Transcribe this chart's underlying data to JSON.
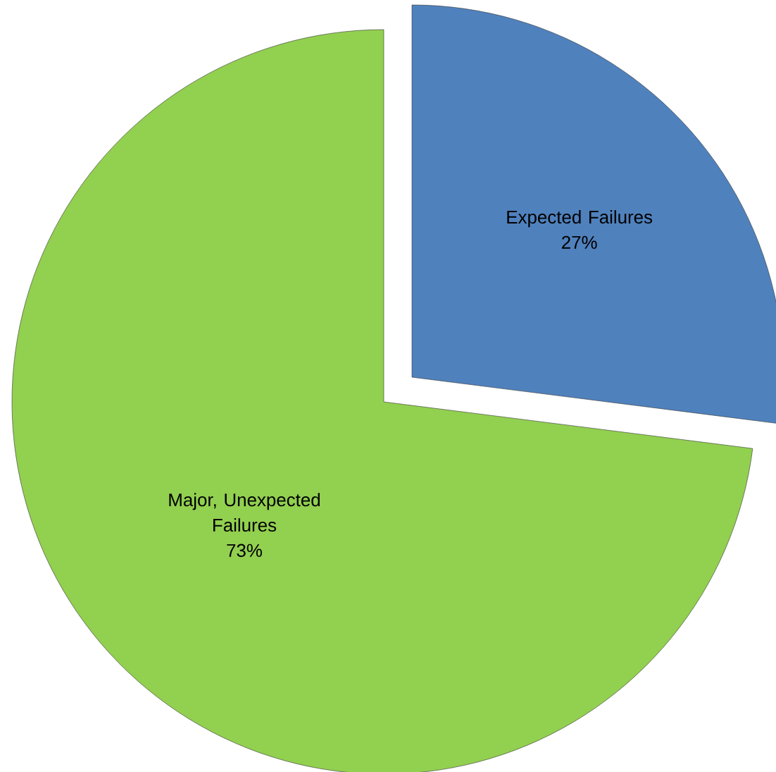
{
  "chart_data": {
    "type": "pie",
    "categories": [
      "Expected Failures",
      "Major, Unexpected Failures"
    ],
    "values": [
      27,
      73
    ],
    "colors": [
      "#4f81bd",
      "#92d050"
    ],
    "value_labels": [
      "27%",
      "73%"
    ]
  }
}
